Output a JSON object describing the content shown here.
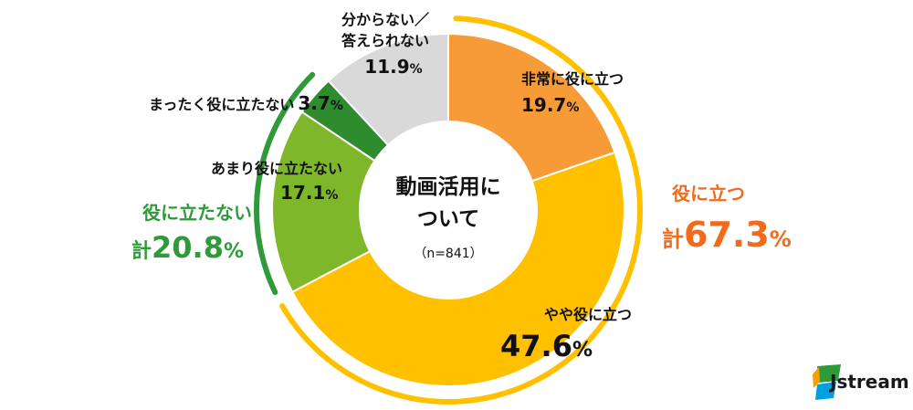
{
  "chart_data": {
    "type": "pie",
    "style": "donut",
    "center_title_lines": [
      "動画活用に",
      "ついて"
    ],
    "center_note": "（n=841）",
    "slices": [
      {
        "label_lines": [
          "非常に役に立つ"
        ],
        "value": 19.7,
        "value_text": "19.7",
        "unit": "%",
        "color": "#f79a38"
      },
      {
        "label_lines": [
          "やや役に立つ"
        ],
        "value": 47.6,
        "value_text": "47.6",
        "unit": "%",
        "color": "#ffc000"
      },
      {
        "label_lines": [
          "あまり役に立たない"
        ],
        "value": 17.1,
        "value_text": "17.1",
        "unit": "%",
        "color": "#7fb72b"
      },
      {
        "label_lines": [
          "まったく役に立たない"
        ],
        "value": 3.7,
        "value_text": "3.7",
        "unit": "%",
        "color": "#2e8b2e"
      },
      {
        "label_lines": [
          "分からない／",
          "答えられない"
        ],
        "value": 11.9,
        "value_text": "11.9",
        "unit": "%",
        "color": "#d9d9d9"
      }
    ],
    "groups": [
      {
        "name_line": "役に立つ",
        "prefix": "計",
        "value": 67.3,
        "value_text": "67.3",
        "unit": "%",
        "color": "#f26b1d",
        "ring_color": "#ffc000"
      },
      {
        "name_line": "役に立たない",
        "prefix": "計",
        "value": 20.8,
        "value_text": "20.8",
        "unit": "%",
        "color": "#2e9a3a",
        "ring_color": "#2e9a3a"
      }
    ]
  },
  "logo": {
    "text": "Jstream",
    "colors": [
      "#f5a000",
      "#2e9a3a",
      "#00a0e0"
    ]
  }
}
